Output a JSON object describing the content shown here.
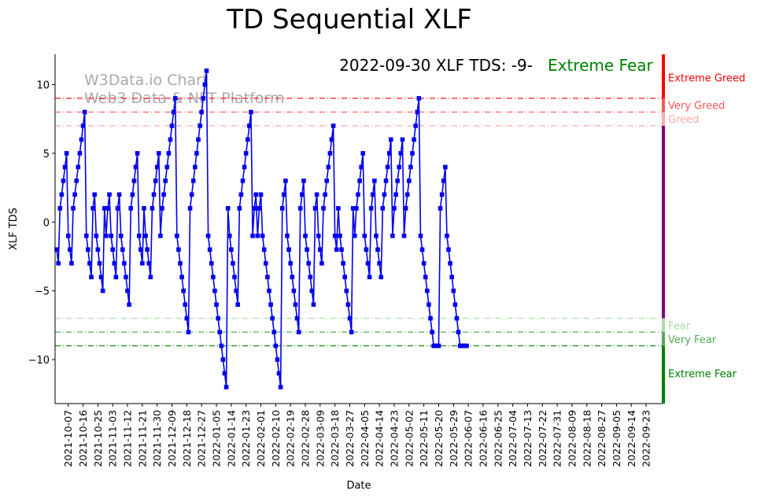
{
  "chart_data": {
    "type": "line",
    "title": "TD Sequential XLF",
    "xlabel": "Date",
    "ylabel": "XLF TDS",
    "ylim": [
      -13.2,
      12.2
    ],
    "yticks": [
      10,
      5,
      0,
      -5,
      -10
    ],
    "ytick_labels": [
      "10",
      "5",
      "0",
      "−5",
      "−10"
    ],
    "xlim": [
      "2021-09-29",
      "2022-10-03"
    ],
    "xtick_dates": [
      "2021-10-07",
      "2021-10-16",
      "2021-10-25",
      "2021-11-03",
      "2021-11-12",
      "2021-11-21",
      "2021-11-30",
      "2021-12-09",
      "2021-12-18",
      "2021-12-27",
      "2022-01-05",
      "2022-01-14",
      "2022-01-23",
      "2022-02-01",
      "2022-02-10",
      "2022-02-19",
      "2022-02-28",
      "2022-03-09",
      "2022-03-18",
      "2022-03-27",
      "2022-04-05",
      "2022-04-14",
      "2022-04-23",
      "2022-05-02",
      "2022-05-11",
      "2022-05-20",
      "2022-05-29",
      "2022-06-07",
      "2022-06-16",
      "2022-06-25",
      "2022-07-04",
      "2022-07-13",
      "2022-07-22",
      "2022-07-31",
      "2022-08-09",
      "2022-08-18",
      "2022-08-27",
      "2022-09-05",
      "2022-09-14",
      "2022-09-23"
    ],
    "annotation": {
      "date_text": "2022-09-30 XLF TDS: -9-",
      "status": "Extreme Fear",
      "status_color": "#008000"
    },
    "watermark": [
      "W3Data.io Chart",
      "Web3 Data & NFT Platform"
    ],
    "grid": false,
    "series": [
      {
        "color": "#0000ee",
        "start_date": "2021-09-30",
        "values": [
          -2,
          -3,
          1,
          2,
          3,
          4,
          5,
          -1,
          -2,
          -3,
          1,
          2,
          3,
          4,
          5,
          6,
          7,
          8,
          -1,
          -2,
          -3,
          -4,
          1,
          2,
          -1,
          -2,
          -3,
          -4,
          -5,
          1,
          -1,
          1,
          2,
          -1,
          -2,
          -3,
          -4,
          1,
          2,
          -1,
          -2,
          -3,
          -4,
          -5,
          -6,
          1,
          2,
          3,
          4,
          5,
          -1,
          -2,
          -3,
          1,
          -1,
          -2,
          -3,
          -4,
          1,
          2,
          3,
          4,
          5,
          -1,
          1,
          2,
          3,
          4,
          5,
          6,
          7,
          8,
          9,
          -1,
          -2,
          -3,
          -4,
          -5,
          -6,
          -7,
          -8,
          1,
          2,
          3,
          4,
          5,
          6,
          7,
          8,
          9,
          10,
          11,
          -1,
          -2,
          -3,
          -4,
          -5,
          -6,
          -7,
          -8,
          -9,
          -10,
          -11,
          -12,
          1,
          -1,
          -2,
          -3,
          -4,
          -5,
          -6,
          1,
          2,
          3,
          4,
          5,
          6,
          7,
          8,
          -1,
          1,
          2,
          -1,
          1,
          2,
          -1,
          -2,
          -3,
          -4,
          -5,
          -6,
          -7,
          -8,
          -9,
          -10,
          -11,
          -12,
          1,
          2,
          3,
          -1,
          -2,
          -3,
          -4,
          -5,
          -6,
          -7,
          -8,
          1,
          2,
          3,
          -1,
          -2,
          -3,
          -4,
          -5,
          -6,
          1,
          2,
          -1,
          -2,
          -3,
          1,
          2,
          3,
          4,
          5,
          6,
          7,
          -1,
          -2,
          1,
          -1,
          -2,
          -3,
          -4,
          -5,
          -6,
          -7,
          -8,
          1,
          -1,
          1,
          2,
          3,
          4,
          5,
          -1,
          -2,
          -3,
          -4,
          1,
          2,
          3,
          -1,
          -2,
          -3,
          -4,
          1,
          2,
          3,
          4,
          5,
          6,
          -1,
          1,
          2,
          3,
          4,
          5,
          6,
          -1,
          1,
          2,
          3,
          4,
          5,
          6,
          7,
          8,
          9,
          -1,
          -2,
          -3,
          -4,
          -5,
          -6,
          -7,
          -8,
          -9,
          -9,
          -9,
          -9,
          1,
          2,
          3,
          4,
          -1,
          -2,
          -3,
          -4,
          -5,
          -6,
          -7,
          -8,
          -9,
          -9,
          -9,
          -9,
          -9
        ]
      }
    ],
    "levels": [
      {
        "label": "Extreme Greed",
        "value": 9,
        "color": "#ff0000",
        "dash": "7,3,1,3"
      },
      {
        "label": "Very Greed",
        "value": 8,
        "color": "#ff5555",
        "dash": "7,3,1,3"
      },
      {
        "label": "Greed",
        "value": 7,
        "color": "#ffaaaa",
        "dash": "7,3,1,3"
      },
      {
        "label": "Fear",
        "value": -7,
        "color": "#aaddaa",
        "dash": "7,3,1,3"
      },
      {
        "label": "Very Fear",
        "value": -8,
        "color": "#55aa55",
        "dash": "7,3,1,3"
      },
      {
        "label": "Extreme Fear",
        "value": -9,
        "color": "#008000",
        "dash": "7,3,1,3"
      }
    ],
    "side_bar": [
      {
        "from": 12.2,
        "to": 9,
        "color": "#ff0000"
      },
      {
        "from": 9,
        "to": 8,
        "color": "#ff5555"
      },
      {
        "from": 8,
        "to": 7,
        "color": "#ffaaaa"
      },
      {
        "from": 7,
        "to": -7,
        "color": "#800080"
      },
      {
        "from": -7,
        "to": -8,
        "color": "#aaddaa"
      },
      {
        "from": -8,
        "to": -9,
        "color": "#55aa55"
      },
      {
        "from": -9,
        "to": -13.2,
        "color": "#008000"
      }
    ],
    "side_labels": [
      {
        "text": "Extreme Greed",
        "at": 10.5,
        "color": "#ff0000"
      },
      {
        "text": "Very Greed",
        "at": 8.5,
        "color": "#ff5555"
      },
      {
        "text": "Greed",
        "at": 7.5,
        "color": "#ffaaaa"
      },
      {
        "text": "Fear",
        "at": -7.5,
        "color": "#aaddaa"
      },
      {
        "text": "Very Fear",
        "at": -8.5,
        "color": "#55aa55"
      },
      {
        "text": "Extreme Fear",
        "at": -11,
        "color": "#008000"
      }
    ]
  }
}
